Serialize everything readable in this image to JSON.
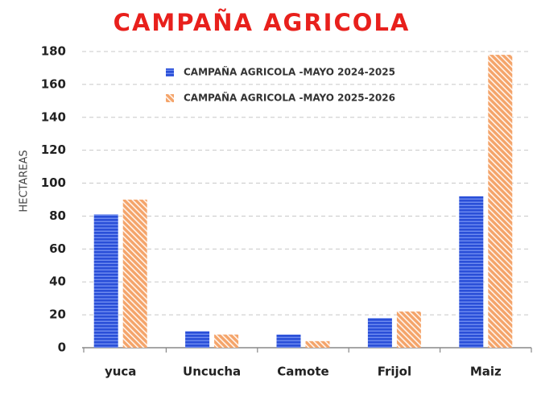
{
  "chart_data": {
    "type": "bar",
    "title": "CAMPAÑA AGRICOLA",
    "y_label": "HECTAREAS",
    "categories": [
      "yuca",
      "Uncucha",
      "Camote",
      "Frijol",
      "Maiz"
    ],
    "series": [
      {
        "name": "CAMPAÑA AGRICOLA -MAYO 2024-2025",
        "color": "#2a4fd8",
        "values": [
          81,
          10,
          8,
          18,
          92
        ]
      },
      {
        "name": "CAMPAÑA AGRICOLA -MAYO 2025-2026",
        "color": "#f4a46a",
        "values": [
          90,
          8,
          4,
          22,
          178
        ]
      }
    ],
    "ylim": [
      0,
      180
    ],
    "yticks": [
      0,
      20,
      40,
      60,
      80,
      100,
      120,
      140,
      160,
      180
    ],
    "grid": true,
    "legend": "top"
  }
}
